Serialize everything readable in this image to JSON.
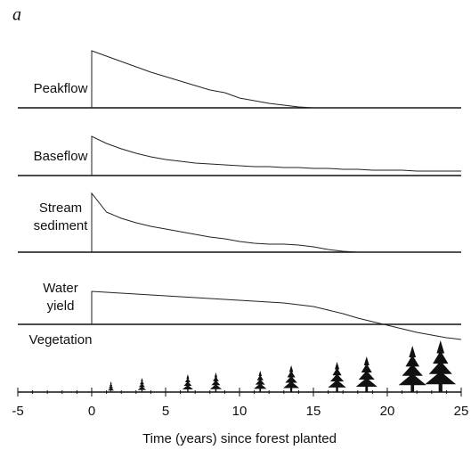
{
  "panel_label": "a",
  "chart_data": [
    {
      "type": "line",
      "title": [
        "Peakflow"
      ],
      "xlim": [
        -5,
        25
      ],
      "ylim": [
        0,
        70
      ],
      "x": [
        0,
        0,
        1,
        2,
        3,
        4,
        5,
        6,
        7,
        8,
        9,
        10,
        11,
        12,
        13,
        14,
        15,
        16,
        17,
        18,
        19,
        20,
        21,
        22,
        23,
        24,
        25
      ],
      "values": [
        0,
        64,
        58,
        52,
        46,
        40,
        35,
        30,
        25,
        20,
        17,
        11,
        8,
        5,
        3,
        1,
        0,
        0,
        0,
        0,
        0,
        0,
        0,
        0,
        0,
        0,
        0
      ]
    },
    {
      "type": "line",
      "title": [
        "Baseflow"
      ],
      "xlim": [
        -5,
        25
      ],
      "ylim": [
        0,
        50
      ],
      "x": [
        0,
        0,
        1,
        2,
        3,
        4,
        5,
        6,
        7,
        8,
        9,
        10,
        11,
        12,
        13,
        14,
        15,
        16,
        17,
        18,
        19,
        20,
        21,
        22,
        23,
        24,
        25
      ],
      "values": [
        0,
        44,
        36,
        30,
        25,
        21,
        18,
        16,
        14,
        13,
        12,
        11,
        10,
        10,
        9,
        9,
        8,
        8,
        7,
        7,
        6,
        6,
        6,
        5,
        5,
        5,
        5
      ]
    },
    {
      "type": "line",
      "title": [
        "Stream",
        "sediment"
      ],
      "xlim": [
        -5,
        25
      ],
      "ylim": [
        0,
        70
      ],
      "x": [
        0,
        0,
        1,
        2,
        3,
        4,
        5,
        6,
        7,
        8,
        9,
        10,
        11,
        12,
        13,
        14,
        15,
        16,
        17,
        18,
        19,
        20,
        21,
        22,
        23,
        24,
        25
      ],
      "values": [
        0,
        66,
        45,
        38,
        33,
        29,
        26,
        23,
        20,
        17,
        15,
        12,
        10,
        9,
        9,
        8,
        6,
        3,
        1,
        0,
        0,
        0,
        0,
        0,
        0,
        0,
        0
      ]
    },
    {
      "type": "line",
      "title": [
        "Water",
        "yield"
      ],
      "xlim": [
        -5,
        25
      ],
      "ylim": [
        -20,
        40
      ],
      "x": [
        0,
        0,
        1,
        2,
        3,
        4,
        5,
        6,
        7,
        8,
        9,
        10,
        11,
        12,
        13,
        14,
        15,
        16,
        17,
        18,
        19,
        20,
        21,
        22,
        23,
        24,
        25
      ],
      "values": [
        0,
        37,
        36,
        35,
        34,
        33,
        32,
        31,
        30,
        29,
        28,
        27,
        26,
        25,
        24,
        22,
        20,
        16,
        12,
        7,
        3,
        -1,
        -5,
        -9,
        -12,
        -15,
        -17
      ]
    },
    {
      "type": "tree",
      "title": [
        "Vegetation"
      ],
      "xlim": [
        -5,
        25
      ],
      "ylim": [
        0,
        60
      ],
      "x": [
        1.3,
        3.4,
        6.5,
        8.4,
        11.4,
        13.5,
        16.6,
        18.6,
        21.7,
        23.6
      ],
      "values": [
        12,
        16,
        20,
        22,
        24,
        30,
        34,
        40,
        52,
        58
      ],
      "xticks": [
        -5,
        0,
        5,
        10,
        15,
        20,
        25
      ],
      "xlabel": "Time (years) since forest planted"
    }
  ]
}
